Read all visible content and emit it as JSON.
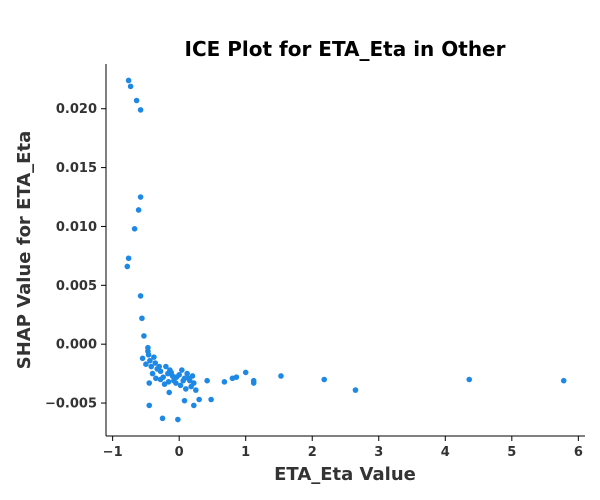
{
  "chart_data": {
    "type": "scatter",
    "title": "ICE Plot for ETA_Eta in Other",
    "xlabel": "ETA_Eta Value",
    "ylabel": "SHAP Value for ETA_Eta",
    "xlim": [
      -1.1,
      6.1
    ],
    "ylim": [
      -0.0078,
      0.0238
    ],
    "xticks": [
      -1,
      0,
      1,
      2,
      3,
      4,
      5,
      6
    ],
    "xtick_labels": [
      "−1",
      "0",
      "1",
      "2",
      "3",
      "4",
      "5",
      "6"
    ],
    "yticks": [
      -0.005,
      0.0,
      0.005,
      0.01,
      0.015,
      0.02
    ],
    "ytick_labels": [
      "−0.005",
      "0.000",
      "0.005",
      "0.010",
      "0.015",
      "0.020"
    ],
    "grid": false,
    "legend": "none",
    "point_color": "#1e88e5",
    "x": [
      -0.76,
      -0.73,
      -0.64,
      -0.58,
      -0.58,
      -0.61,
      -0.67,
      -0.76,
      -0.78,
      -0.58,
      -0.56,
      -0.53,
      -0.55,
      -0.47,
      -0.47,
      -0.46,
      -0.44,
      -0.42,
      -0.38,
      -0.36,
      -0.33,
      -0.3,
      -0.28,
      -0.24,
      -0.2,
      -0.17,
      -0.14,
      -0.12,
      -0.08,
      -0.04,
      0.0,
      0.04,
      0.08,
      0.12,
      0.16,
      0.2,
      -0.5,
      -0.45,
      -0.4,
      -0.35,
      -0.28,
      -0.22,
      -0.16,
      -0.1,
      -0.05,
      0.02,
      0.06,
      0.1,
      0.14,
      0.18,
      0.22,
      0.25,
      -0.45,
      -0.25,
      -0.15,
      -0.02,
      0.08,
      0.22,
      0.3,
      0.42,
      0.48,
      0.68,
      0.8,
      0.86,
      1.0,
      1.12,
      1.12,
      1.53,
      2.18,
      2.65,
      4.36,
      5.78
    ],
    "y": [
      0.0224,
      0.0219,
      0.0207,
      0.0199,
      0.0125,
      0.0114,
      0.0098,
      0.0073,
      0.0066,
      0.0041,
      0.0022,
      0.0007,
      -0.0012,
      -0.0003,
      -0.0006,
      -0.0009,
      -0.0014,
      -0.0019,
      -0.0011,
      -0.0016,
      -0.0021,
      -0.0019,
      -0.0023,
      -0.0028,
      -0.0019,
      -0.0025,
      -0.0022,
      -0.0024,
      -0.0031,
      -0.0028,
      -0.0026,
      -0.0022,
      -0.0029,
      -0.0025,
      -0.0031,
      -0.0027,
      -0.0017,
      -0.0033,
      -0.0025,
      -0.0029,
      -0.003,
      -0.0034,
      -0.0032,
      -0.0027,
      -0.0033,
      -0.0035,
      -0.0031,
      -0.0038,
      -0.0029,
      -0.0036,
      -0.0033,
      -0.0039,
      -0.0052,
      -0.0063,
      -0.0041,
      -0.0064,
      -0.0048,
      -0.0052,
      -0.0047,
      -0.0031,
      -0.0047,
      -0.0032,
      -0.0029,
      -0.0028,
      -0.0024,
      -0.0031,
      -0.0033,
      -0.0027,
      -0.003,
      -0.0039,
      -0.003,
      -0.0031
    ]
  }
}
